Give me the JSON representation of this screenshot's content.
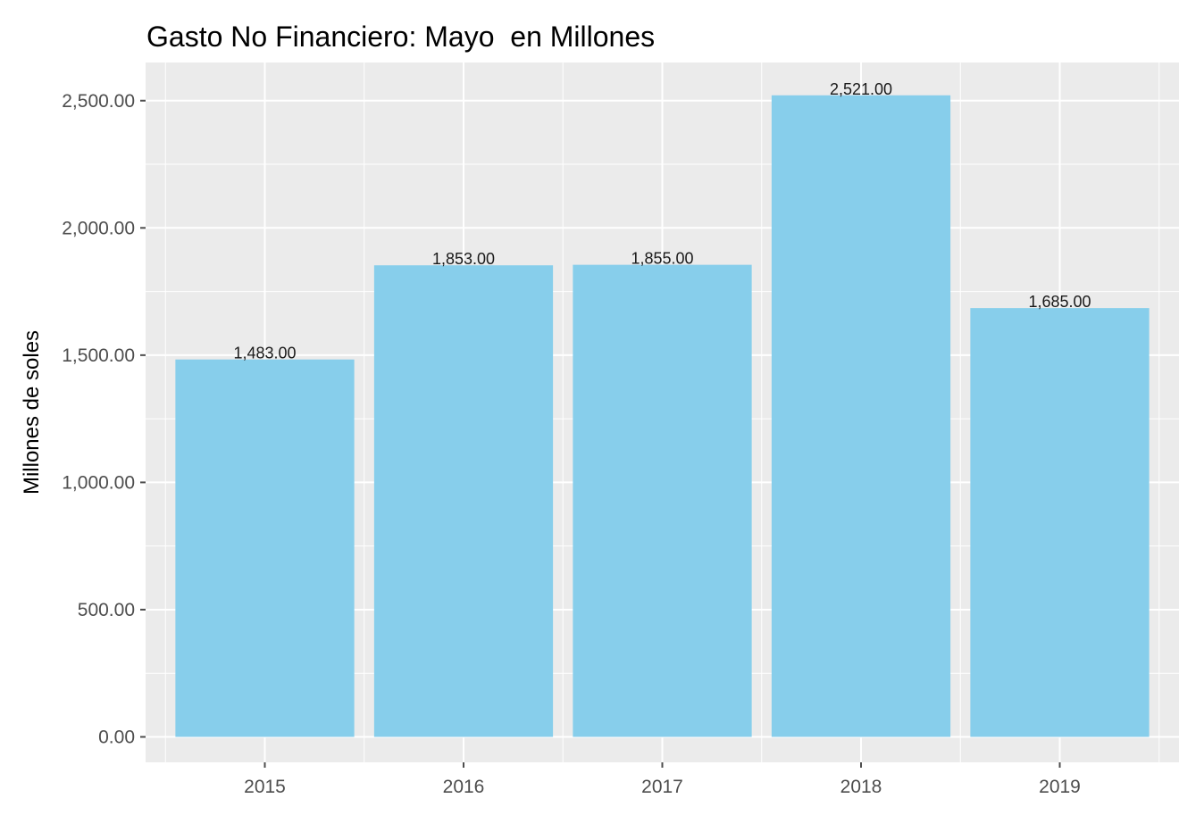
{
  "chart_data": {
    "type": "bar",
    "title": "Gasto No Financiero: Mayo  en Millones",
    "xlabel": "",
    "ylabel": "Millones de soles",
    "categories": [
      "2015",
      "2016",
      "2017",
      "2018",
      "2019"
    ],
    "values": [
      1483,
      1853,
      1855,
      2521,
      1685
    ],
    "data_labels": [
      "1,483.00",
      "1,853.00",
      "1,855.00",
      "2,521.00",
      "1,685.00"
    ],
    "ylim": [
      -100,
      2650
    ],
    "yticks": [
      0,
      500,
      1000,
      1500,
      2000,
      2500
    ],
    "ytick_labels": [
      "0.00",
      "500.00",
      "1,000.00",
      "1,500.00",
      "2,000.00",
      "2,500.00"
    ],
    "grid": true,
    "legend": "none",
    "colors": {
      "bar": "#87CEEB",
      "panel": "#EBEBEB",
      "grid": "#FFFFFF",
      "tick": "#4D4D4D",
      "text": "#000000"
    }
  }
}
